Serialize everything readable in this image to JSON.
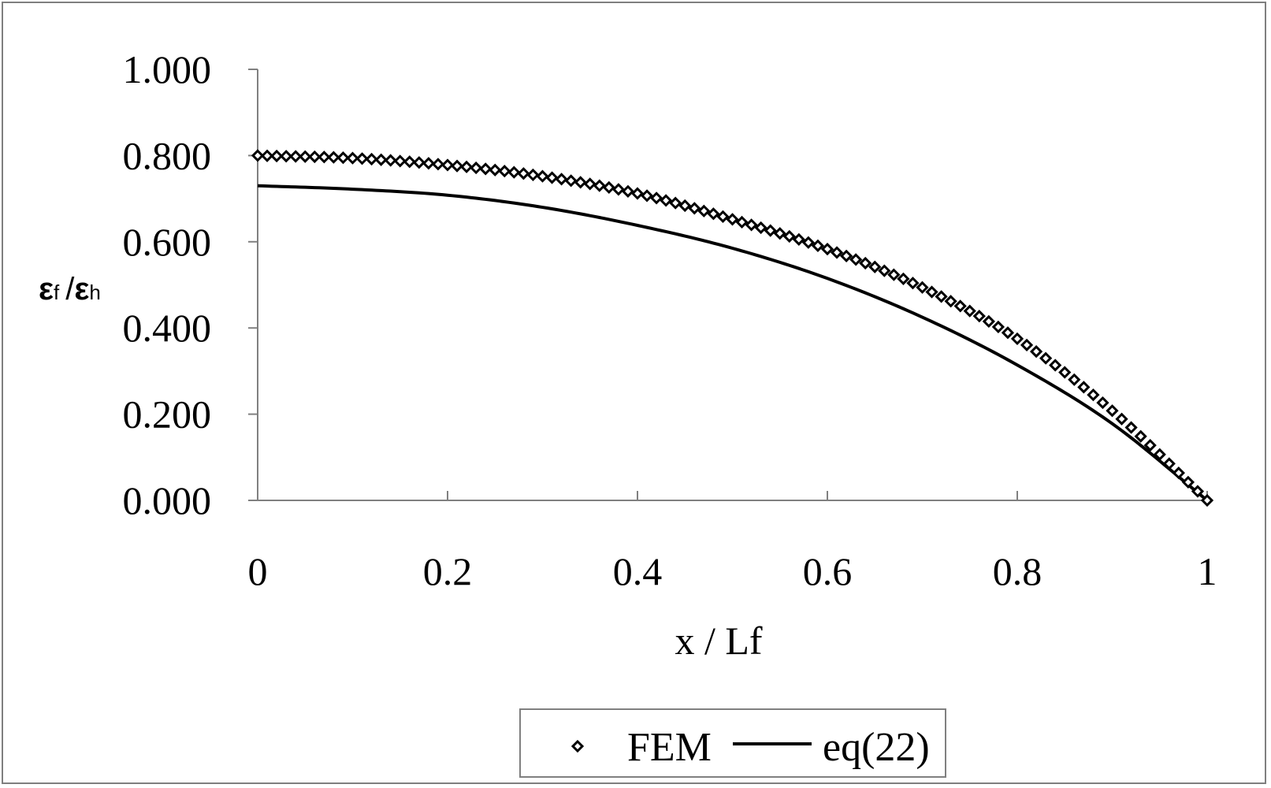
{
  "chart_data": {
    "type": "line",
    "xlabel": "x / Lf",
    "ylabel": {
      "main1": "ε",
      "sub1": "f",
      "sep": "/",
      "main2": "ε",
      "sub2": "h"
    },
    "xlim": [
      0,
      1
    ],
    "ylim": [
      0,
      1
    ],
    "x_ticks": [
      "0",
      "0.2",
      "0.4",
      "0.6",
      "0.8",
      "1"
    ],
    "y_ticks": [
      "0.000",
      "0.200",
      "0.400",
      "0.600",
      "0.800",
      "1.000"
    ],
    "grid": false,
    "legend_position": "bottom",
    "series": [
      {
        "name": "FEM",
        "style": "markers",
        "marker": "diamond",
        "color": "#000000",
        "x": [
          0.0,
          0.1,
          0.2,
          0.3,
          0.4,
          0.5,
          0.6,
          0.7,
          0.8,
          0.9,
          1.0
        ],
        "y": [
          0.8,
          0.794,
          0.778,
          0.752,
          0.712,
          0.652,
          0.583,
          0.494,
          0.375,
          0.208,
          0.0
        ]
      },
      {
        "name": "eq(22)",
        "style": "line",
        "color": "#000000",
        "x": [
          0.0,
          0.1,
          0.2,
          0.3,
          0.4,
          0.5,
          0.6,
          0.7,
          0.8,
          0.9,
          1.0
        ],
        "y": [
          0.73,
          0.722,
          0.708,
          0.68,
          0.638,
          0.585,
          0.515,
          0.425,
          0.314,
          0.178,
          0.0
        ]
      }
    ]
  }
}
